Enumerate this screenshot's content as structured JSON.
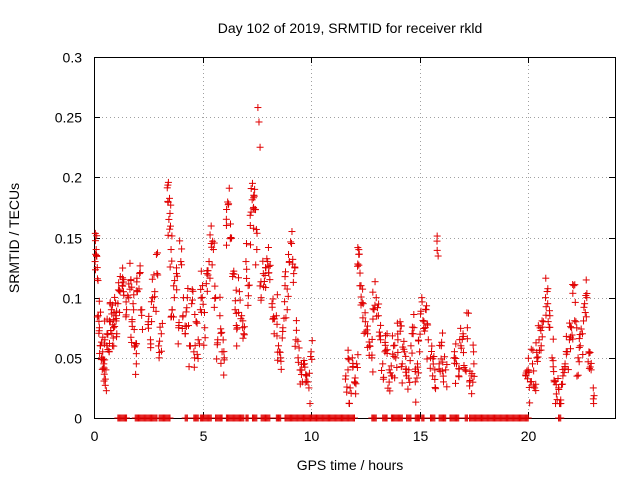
{
  "chart_data": {
    "type": "scatter",
    "title": "Day 102 of 2019, SRMTID for receiver rkld",
    "xlabel": "GPS time / hours",
    "ylabel": "SRMTID / TECUs",
    "xlim": [
      0,
      24
    ],
    "ylim": [
      0,
      0.3
    ],
    "xticks": [
      0,
      5,
      10,
      15,
      20
    ],
    "yticks": [
      0,
      0.05,
      0.1,
      0.15,
      0.2,
      0.25,
      0.3
    ],
    "xtick_labels": [
      "0",
      "5",
      "10",
      "15",
      "20"
    ],
    "ytick_labels": [
      "0",
      "0.05",
      "0.1",
      "0.15",
      "0.2",
      "0.25",
      "0.3"
    ],
    "grid": true,
    "marker": "+",
    "color": "#e00000",
    "series": [
      {
        "name": "SRMTID",
        "points": [
          [
            0.05,
            0.13
          ],
          [
            0.1,
            0.14
          ],
          [
            0.15,
            0.125
          ],
          [
            0.2,
            0.085
          ],
          [
            0.25,
            0.075
          ],
          [
            0.3,
            0.06
          ],
          [
            0.35,
            0.05
          ],
          [
            0.4,
            0.055
          ],
          [
            0.45,
            0.045
          ],
          [
            0.5,
            0.065
          ],
          [
            0.55,
            0.04
          ],
          [
            0.6,
            0.07
          ],
          [
            0.7,
            0.055
          ],
          [
            0.75,
            0.08
          ],
          [
            0.8,
            0.09
          ],
          [
            0.85,
            0.06
          ],
          [
            0.9,
            0.075
          ],
          [
            1.0,
            0.085
          ],
          [
            1.05,
            0.07
          ],
          [
            1.1,
            0.095
          ],
          [
            1.2,
            0.105
          ],
          [
            1.3,
            0.11
          ],
          [
            1.35,
            0.115
          ],
          [
            1.5,
            0.09
          ],
          [
            1.6,
            0.1
          ],
          [
            1.7,
            0.115
          ],
          [
            1.75,
            0.08
          ],
          [
            1.8,
            0.095
          ],
          [
            1.9,
            0.06
          ],
          [
            1.95,
            0.045
          ],
          [
            2.0,
            0.105
          ],
          [
            2.1,
            0.12
          ],
          [
            2.2,
            0.09
          ],
          [
            2.5,
            0.08
          ],
          [
            2.6,
            0.065
          ],
          [
            2.7,
            0.1
          ],
          [
            2.8,
            0.105
          ],
          [
            2.9,
            0.12
          ],
          [
            3.0,
            0.05
          ],
          [
            3.1,
            0.07
          ],
          [
            3.4,
            0.18
          ],
          [
            3.45,
            0.165
          ],
          [
            3.5,
            0.17
          ],
          [
            3.55,
            0.14
          ],
          [
            3.6,
            0.09
          ],
          [
            3.7,
            0.1
          ],
          [
            3.8,
            0.12
          ],
          [
            3.9,
            0.075
          ],
          [
            4.0,
            0.13
          ],
          [
            4.1,
            0.085
          ],
          [
            4.2,
            0.07
          ],
          [
            4.3,
            0.1
          ],
          [
            4.4,
            0.06
          ],
          [
            4.5,
            0.095
          ],
          [
            4.6,
            0.055
          ],
          [
            4.7,
            0.08
          ],
          [
            4.8,
            0.065
          ],
          [
            4.9,
            0.09
          ],
          [
            5.0,
            0.11
          ],
          [
            5.1,
            0.075
          ],
          [
            5.2,
            0.12
          ],
          [
            5.3,
            0.13
          ],
          [
            5.4,
            0.145
          ],
          [
            5.5,
            0.14
          ],
          [
            5.6,
            0.1
          ],
          [
            5.7,
            0.065
          ],
          [
            5.8,
            0.085
          ],
          [
            5.9,
            0.055
          ],
          [
            6.0,
            0.05
          ],
          [
            6.1,
            0.16
          ],
          [
            6.2,
            0.178
          ],
          [
            6.3,
            0.15
          ],
          [
            6.4,
            0.12
          ],
          [
            6.5,
            0.09
          ],
          [
            6.6,
            0.075
          ],
          [
            6.7,
            0.105
          ],
          [
            6.8,
            0.085
          ],
          [
            6.9,
            0.07
          ],
          [
            7.0,
            0.13
          ],
          [
            7.1,
            0.11
          ],
          [
            7.2,
            0.16
          ],
          [
            7.3,
            0.195
          ],
          [
            7.35,
            0.175
          ],
          [
            7.4,
            0.19
          ],
          [
            7.5,
            0.14
          ],
          [
            7.55,
            0.258
          ],
          [
            7.6,
            0.246
          ],
          [
            7.65,
            0.225
          ],
          [
            7.7,
            0.1
          ],
          [
            7.8,
            0.12
          ],
          [
            7.9,
            0.125
          ],
          [
            8.0,
            0.13
          ],
          [
            8.1,
            0.115
          ],
          [
            8.2,
            0.095
          ],
          [
            8.3,
            0.07
          ],
          [
            8.4,
            0.085
          ],
          [
            8.5,
            0.06
          ],
          [
            8.6,
            0.05
          ],
          [
            8.7,
            0.075
          ],
          [
            8.8,
            0.11
          ],
          [
            8.9,
            0.09
          ],
          [
            9.0,
            0.13
          ],
          [
            9.1,
            0.145
          ],
          [
            9.2,
            0.12
          ],
          [
            9.3,
            0.065
          ],
          [
            9.4,
            0.05
          ],
          [
            9.5,
            0.04
          ],
          [
            9.6,
            0.03
          ],
          [
            9.7,
            0.045
          ],
          [
            9.8,
            0.035
          ],
          [
            9.9,
            0.025
          ],
          [
            10.0,
            0.055
          ],
          [
            11.6,
            0.035
          ],
          [
            11.7,
            0.04
          ],
          [
            11.8,
            0.025
          ],
          [
            11.9,
            0.05
          ],
          [
            12.0,
            0.03
          ],
          [
            12.1,
            0.045
          ],
          [
            12.15,
            0.128
          ],
          [
            12.2,
            0.127
          ],
          [
            12.3,
            0.11
          ],
          [
            12.4,
            0.095
          ],
          [
            12.5,
            0.08
          ],
          [
            12.6,
            0.07
          ],
          [
            12.7,
            0.06
          ],
          [
            12.8,
            0.05
          ],
          [
            12.9,
            0.09
          ],
          [
            13.0,
            0.1
          ],
          [
            13.1,
            0.085
          ],
          [
            13.2,
            0.065
          ],
          [
            13.3,
            0.045
          ],
          [
            13.4,
            0.055
          ],
          [
            13.5,
            0.07
          ],
          [
            13.6,
            0.04
          ],
          [
            13.7,
            0.035
          ],
          [
            13.8,
            0.06
          ],
          [
            13.9,
            0.05
          ],
          [
            14.0,
            0.065
          ],
          [
            14.1,
            0.08
          ],
          [
            14.2,
            0.045
          ],
          [
            14.3,
            0.055
          ],
          [
            14.4,
            0.035
          ],
          [
            14.5,
            0.04
          ],
          [
            14.6,
            0.06
          ],
          [
            14.7,
            0.07
          ],
          [
            14.8,
            0.03
          ],
          [
            14.9,
            0.045
          ],
          [
            15.0,
            0.055
          ],
          [
            15.1,
            0.1
          ],
          [
            15.2,
            0.08
          ],
          [
            15.3,
            0.09
          ],
          [
            15.4,
            0.065
          ],
          [
            15.5,
            0.05
          ],
          [
            15.6,
            0.035
          ],
          [
            15.7,
            0.04
          ],
          [
            15.8,
            0.147
          ],
          [
            15.9,
            0.045
          ],
          [
            16.0,
            0.06
          ],
          [
            16.1,
            0.03
          ],
          [
            16.2,
            0.04
          ],
          [
            16.6,
            0.05
          ],
          [
            16.7,
            0.045
          ],
          [
            16.8,
            0.035
          ],
          [
            16.9,
            0.06
          ],
          [
            17.0,
            0.07
          ],
          [
            17.1,
            0.04
          ],
          [
            17.2,
            0.075
          ],
          [
            17.3,
            0.03
          ],
          [
            17.4,
            0.035
          ],
          [
            17.5,
            0.045
          ],
          [
            19.9,
            0.035
          ],
          [
            20.0,
            0.04
          ],
          [
            20.1,
            0.03
          ],
          [
            20.2,
            0.045
          ],
          [
            20.3,
            0.025
          ],
          [
            20.4,
            0.05
          ],
          [
            20.5,
            0.065
          ],
          [
            20.6,
            0.06
          ],
          [
            20.7,
            0.08
          ],
          [
            20.8,
            0.1
          ],
          [
            20.9,
            0.095
          ],
          [
            21.0,
            0.085
          ],
          [
            21.1,
            0.05
          ],
          [
            21.2,
            0.03
          ],
          [
            21.3,
            0.02
          ],
          [
            21.4,
            0.025
          ],
          [
            21.5,
            0.015
          ],
          [
            21.6,
            0.035
          ],
          [
            21.7,
            0.045
          ],
          [
            21.8,
            0.055
          ],
          [
            21.9,
            0.065
          ],
          [
            22.0,
            0.075
          ],
          [
            22.1,
            0.11
          ],
          [
            22.2,
            0.08
          ],
          [
            22.3,
            0.05
          ],
          [
            22.4,
            0.06
          ],
          [
            22.5,
            0.07
          ],
          [
            22.6,
            0.095
          ],
          [
            22.7,
            0.1
          ],
          [
            22.8,
            0.055
          ],
          [
            22.9,
            0.04
          ],
          [
            23.0,
            0.025
          ]
        ]
      }
    ],
    "zero_gaps": [
      [
        1.1,
        1.5
      ],
      [
        1.9,
        2.9
      ],
      [
        3.0,
        3.5
      ],
      [
        4.2,
        4.3
      ],
      [
        4.6,
        4.8
      ],
      [
        4.9,
        5.4
      ],
      [
        5.6,
        5.9
      ],
      [
        6.1,
        6.9
      ],
      [
        7.0,
        7.1
      ],
      [
        7.3,
        7.5
      ],
      [
        7.7,
        8.1
      ],
      [
        8.4,
        8.6
      ],
      [
        8.8,
        10.0
      ],
      [
        10.0,
        12.0
      ],
      [
        12.8,
        13.0
      ],
      [
        13.3,
        13.5
      ],
      [
        13.7,
        14.2
      ],
      [
        14.4,
        14.6
      ],
      [
        14.8,
        15.0
      ],
      [
        15.1,
        15.2
      ],
      [
        15.5,
        15.7
      ],
      [
        15.9,
        16.2
      ],
      [
        16.4,
        16.8
      ],
      [
        17.1,
        17.2
      ],
      [
        17.3,
        20.0
      ],
      [
        21.4,
        21.5
      ]
    ]
  }
}
